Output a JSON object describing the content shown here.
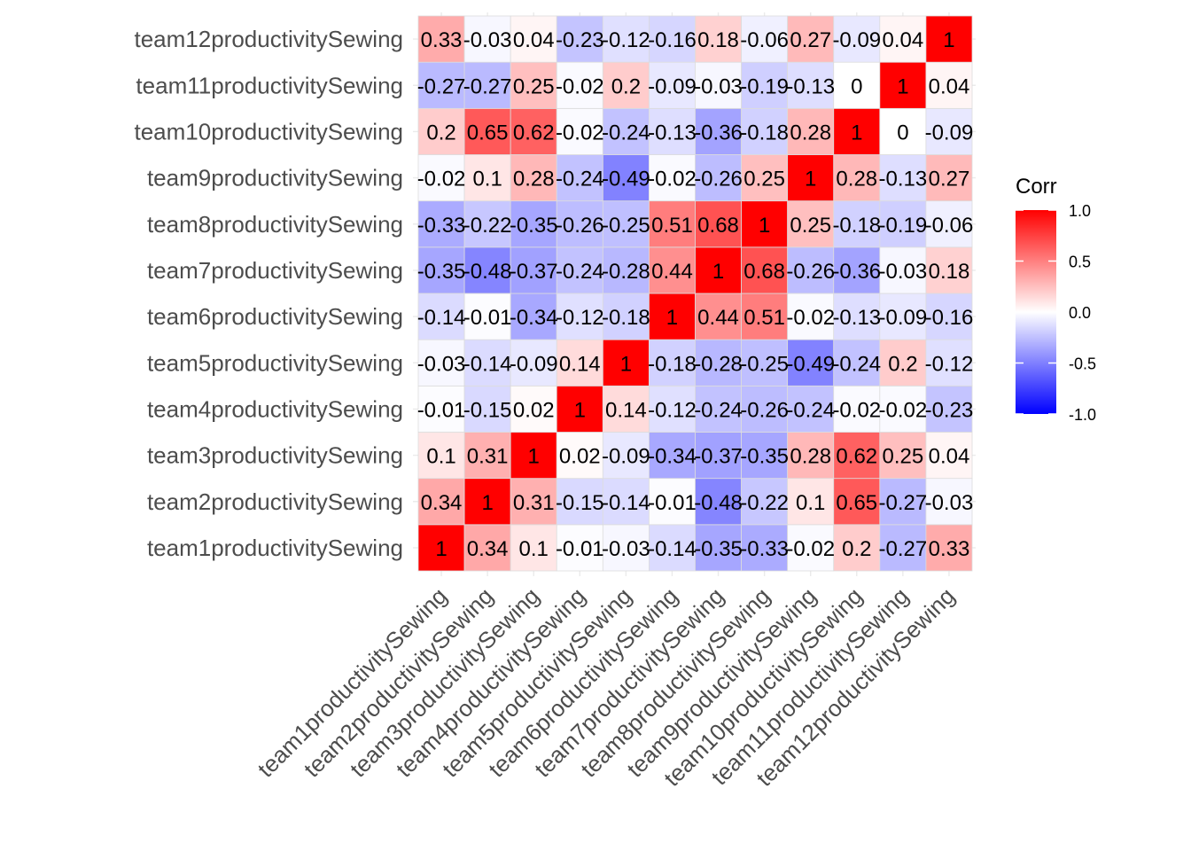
{
  "chart_data": {
    "type": "heatmap",
    "title": "",
    "xlabel": "",
    "ylabel": "",
    "variables": [
      "team1productivitySewing",
      "team2productivitySewing",
      "team3productivitySewing",
      "team4productivitySewing",
      "team5productivitySewing",
      "team6productivitySewing",
      "team7productivitySewing",
      "team8productivitySewing",
      "team9productivitySewing",
      "team10productivitySewing",
      "team11productivitySewing",
      "team12productivitySewing"
    ],
    "matrix": [
      [
        1,
        0.34,
        0.1,
        -0.01,
        -0.03,
        -0.14,
        -0.35,
        -0.33,
        -0.02,
        0.2,
        -0.27,
        0.33
      ],
      [
        0.34,
        1,
        0.31,
        -0.15,
        -0.14,
        -0.01,
        -0.48,
        -0.22,
        0.1,
        0.65,
        -0.27,
        -0.03
      ],
      [
        0.1,
        0.31,
        1,
        0.02,
        -0.09,
        -0.34,
        -0.37,
        -0.35,
        0.28,
        0.62,
        0.25,
        0.04
      ],
      [
        -0.01,
        -0.15,
        0.02,
        1,
        0.14,
        -0.12,
        -0.24,
        -0.26,
        -0.24,
        -0.02,
        -0.02,
        -0.23
      ],
      [
        -0.03,
        -0.14,
        -0.09,
        0.14,
        1,
        -0.18,
        -0.28,
        -0.25,
        -0.49,
        -0.24,
        0.2,
        -0.12
      ],
      [
        -0.14,
        -0.01,
        -0.34,
        -0.12,
        -0.18,
        1,
        0.44,
        0.51,
        -0.02,
        -0.13,
        -0.09,
        -0.16
      ],
      [
        -0.35,
        -0.48,
        -0.37,
        -0.24,
        -0.28,
        0.44,
        1,
        0.68,
        -0.26,
        -0.36,
        -0.03,
        0.18
      ],
      [
        -0.33,
        -0.22,
        -0.35,
        -0.26,
        -0.25,
        0.51,
        0.68,
        1,
        0.25,
        -0.18,
        -0.19,
        -0.06
      ],
      [
        -0.02,
        0.1,
        0.28,
        -0.24,
        -0.49,
        -0.02,
        -0.26,
        0.25,
        1,
        0.28,
        -0.13,
        0.27
      ],
      [
        0.2,
        0.65,
        0.62,
        -0.02,
        -0.24,
        -0.13,
        -0.36,
        -0.18,
        0.28,
        1,
        0,
        -0.09
      ],
      [
        -0.27,
        -0.27,
        0.25,
        -0.02,
        0.2,
        -0.09,
        -0.03,
        -0.19,
        -0.13,
        0,
        1,
        0.04
      ],
      [
        0.33,
        -0.03,
        0.04,
        -0.23,
        -0.12,
        -0.16,
        0.18,
        -0.06,
        0.27,
        -0.09,
        0.04,
        1
      ]
    ],
    "cell_labels": [
      [
        "1",
        "0.34",
        "0.1",
        "-0.01",
        "-0.03",
        "-0.14",
        "-0.35",
        "-0.33",
        "-0.02",
        "0.2",
        "-0.27",
        "0.33"
      ],
      [
        "0.34",
        "1",
        "0.31",
        "-0.15",
        "-0.14",
        "-0.01",
        "-0.48",
        "-0.22",
        "0.1",
        "0.65",
        "-0.27",
        "-0.03"
      ],
      [
        "0.1",
        "0.31",
        "1",
        "0.02",
        "-0.09",
        "-0.34",
        "-0.37",
        "-0.35",
        "0.28",
        "0.62",
        "0.25",
        "0.04"
      ],
      [
        "-0.01",
        "-0.15",
        "0.02",
        "1",
        "0.14",
        "-0.12",
        "-0.24",
        "-0.26",
        "-0.24",
        "-0.02",
        "-0.02",
        "-0.23"
      ],
      [
        "-0.03",
        "-0.14",
        "-0.09",
        "0.14",
        "1",
        "-0.18",
        "-0.28",
        "-0.25",
        "-0.49",
        "-0.24",
        "0.2",
        "-0.12"
      ],
      [
        "-0.14",
        "-0.01",
        "-0.34",
        "-0.12",
        "-0.18",
        "1",
        "0.44",
        "0.51",
        "-0.02",
        "-0.13",
        "-0.09",
        "-0.16"
      ],
      [
        "-0.35",
        "-0.48",
        "-0.37",
        "-0.24",
        "-0.28",
        "0.44",
        "1",
        "0.68",
        "-0.26",
        "-0.36",
        "-0.03",
        "0.18"
      ],
      [
        "-0.33",
        "-0.22",
        "-0.35",
        "-0.26",
        "-0.25",
        "0.51",
        "0.68",
        "1",
        "0.25",
        "-0.18",
        "-0.19",
        "-0.06"
      ],
      [
        "-0.02",
        "0.1",
        "0.28",
        "-0.24",
        "-0.49",
        "-0.02",
        "-0.26",
        "0.25",
        "1",
        "0.28",
        "-0.13",
        "0.27"
      ],
      [
        "0.2",
        "0.65",
        "0.62",
        "-0.02",
        "-0.24",
        "-0.13",
        "-0.36",
        "-0.18",
        "0.28",
        "1",
        "0",
        "-0.09"
      ],
      [
        "-0.27",
        "-0.27",
        "0.25",
        "-0.02",
        "0.2",
        "-0.09",
        "-0.03",
        "-0.19",
        "-0.13",
        "0",
        "1",
        "0.04"
      ],
      [
        "0.33",
        "-0.03",
        "0.04",
        "-0.23",
        "-0.12",
        "-0.16",
        "0.18",
        "-0.06",
        "0.27",
        "-0.09",
        "0.04",
        "1"
      ]
    ],
    "color_scale": {
      "low": "#0000ff",
      "mid": "#ffffff",
      "high": "#ff0000",
      "range": [
        -1,
        1
      ]
    },
    "grid": true,
    "legend": {
      "title": "Corr",
      "placement": "right",
      "ticks": [
        1.0,
        0.5,
        0.0,
        -0.5,
        -1.0
      ],
      "tick_labels": [
        "1.0",
        "0.5",
        "0.0",
        "-0.5",
        "-1.0"
      ]
    }
  }
}
